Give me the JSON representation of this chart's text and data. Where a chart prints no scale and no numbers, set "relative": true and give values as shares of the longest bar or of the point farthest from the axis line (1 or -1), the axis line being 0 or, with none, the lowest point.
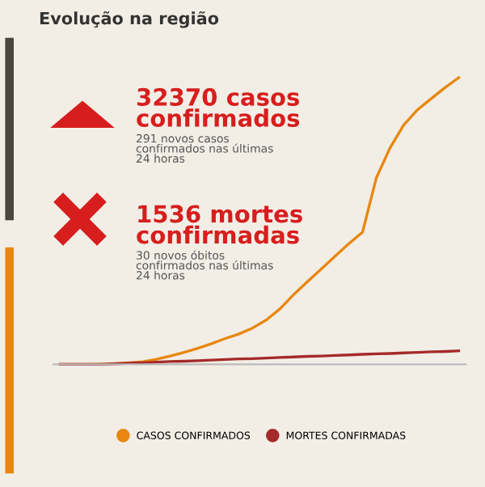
{
  "chart_data": {
    "type": "line",
    "title": "Evolução na região",
    "relative": true,
    "legend": "bottom",
    "grid": false,
    "marker": "none",
    "categories": [
      null,
      null,
      null,
      null,
      null,
      null,
      null,
      null,
      null,
      null,
      null,
      null,
      null,
      null,
      null,
      null,
      null,
      null,
      null,
      null,
      null,
      null,
      null,
      null,
      null,
      null,
      null,
      null,
      null,
      null
    ],
    "series": [
      {
        "name": "CASOS CONFIRMADOS",
        "color": "#e8870e",
        "values": [
          0,
          0,
          0,
          0.001,
          0.003,
          0.006,
          0.009,
          0.018,
          0.029,
          0.042,
          0.056,
          0.072,
          0.09,
          0.106,
          0.127,
          0.155,
          0.194,
          0.244,
          0.289,
          0.333,
          0.377,
          0.421,
          0.461,
          0.65,
          0.755,
          0.835,
          0.888,
          0.927,
          0.965,
          1
        ]
      },
      {
        "name": "MORTES CONFIRMADAS",
        "color": "#a52a2a",
        "values": [
          0,
          0,
          0,
          0,
          0.002,
          0.004,
          0.006,
          0.008,
          0.01,
          0.011,
          0.013,
          0.015,
          0.017,
          0.019,
          0.02,
          0.022,
          0.024,
          0.026,
          0.028,
          0.029,
          0.031,
          0.033,
          0.035,
          0.037,
          0.038,
          0.04,
          0.042,
          0.044,
          0.045,
          0.047
        ]
      }
    ],
    "annotations": [
      "32370 casos confirmados",
      "291 novos casos\nconfirmados nas últimas\n24 horas",
      "1536 mortes confirmadas",
      "30 novos óbitos\nconfirmados nas últimas\n24 horas"
    ]
  }
}
